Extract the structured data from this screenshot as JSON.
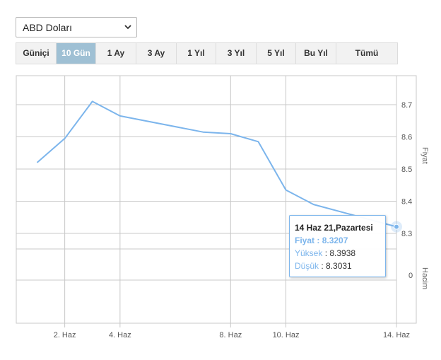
{
  "currency_select": {
    "value": "ABD Doları"
  },
  "range_tabs": [
    {
      "label": "Güniçi",
      "active": false
    },
    {
      "label": "10 Gün",
      "active": true
    },
    {
      "label": "1 Ay",
      "active": false
    },
    {
      "label": "3 Ay",
      "active": false
    },
    {
      "label": "1 Yıl",
      "active": false
    },
    {
      "label": "3 Yıl",
      "active": false
    },
    {
      "label": "5 Yıl",
      "active": false
    },
    {
      "label": "Bu Yıl",
      "active": false
    },
    {
      "label": "Tümü",
      "active": false
    }
  ],
  "tooltip": {
    "title": "14 Haz 21,Pazartesi",
    "price_label": "Fiyat",
    "price_value": "8.3207",
    "high_label": "Yüksek",
    "high_value": "8.3938",
    "low_label": "Düşük",
    "low_value": "8.3031"
  },
  "colors": {
    "line": "#7cb5ec",
    "active_tab": "#9fc0d4",
    "grid": "#c8c8c8"
  },
  "chart_data": {
    "type": "line",
    "x_tick_labels": [
      "2. Haz",
      "4. Haz",
      "8. Haz",
      "10. Haz",
      "14. Haz"
    ],
    "x_tick_days": [
      2,
      4,
      8,
      10,
      14
    ],
    "series": [
      {
        "x_days": [
          1,
          2,
          3,
          4,
          7,
          8,
          9,
          10,
          11,
          14
        ],
        "values": [
          8.52,
          8.595,
          8.71,
          8.665,
          8.615,
          8.61,
          8.585,
          8.435,
          8.39,
          8.3207
        ]
      }
    ],
    "price_axis": {
      "label": "Fiyat",
      "ticks": [
        8.3,
        8.4,
        8.5,
        8.6,
        8.7
      ],
      "ylim": [
        8.22,
        8.8
      ]
    },
    "volume_axis": {
      "label": "Hacim",
      "ticks": [
        0
      ]
    },
    "grid": true
  }
}
